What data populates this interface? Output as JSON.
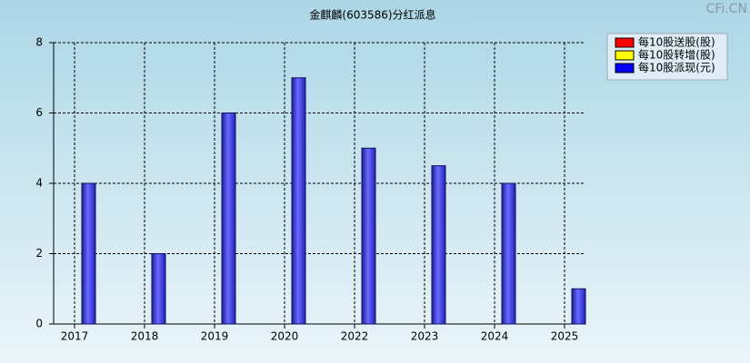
{
  "chart_data": {
    "type": "bar",
    "title": "金麒麟(603586)分红派息",
    "watermark": "CFi.CN",
    "categories": [
      "2017",
      "2018",
      "2019",
      "2020",
      "2022",
      "2023",
      "2024",
      "2025"
    ],
    "series": [
      {
        "name": "每10股送股(股)",
        "color": "#ff0000",
        "values": [
          null,
          null,
          null,
          null,
          null,
          null,
          null,
          null
        ]
      },
      {
        "name": "每10股转增(股)",
        "color": "#ffff00",
        "values": [
          null,
          null,
          null,
          null,
          null,
          null,
          null,
          null
        ]
      },
      {
        "name": "每10股派现(元)",
        "color": "#0000ff",
        "values": [
          4,
          2,
          6,
          7,
          5,
          4.5,
          4,
          1
        ]
      }
    ],
    "ylim": [
      0,
      8
    ],
    "yticks": [
      0,
      2,
      4,
      6,
      8
    ],
    "grid": true,
    "legend": "top-right"
  }
}
